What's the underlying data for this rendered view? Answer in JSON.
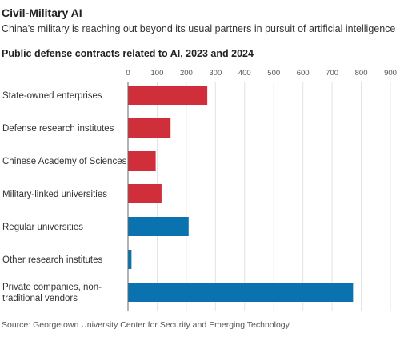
{
  "header": {
    "title": "Civil-Military AI",
    "subtitle": "China’s military is reaching out beyond its usual partners in pursuit of artificial intelligence"
  },
  "colors": {
    "red": "#d12e3c",
    "blue": "#0a72ae",
    "grid": "#e3e3e3"
  },
  "chart_data": {
    "type": "bar",
    "orientation": "horizontal",
    "title": "Public defense contracts related to AI, 2023 and 2024",
    "categories": [
      [
        "State-owned enterprises"
      ],
      [
        "Defense research institutes"
      ],
      [
        "Chinese Academy of Sciences"
      ],
      [
        "Military-linked universities"
      ],
      [
        "Regular universities"
      ],
      [
        "Other research institutes"
      ],
      [
        "Private companies, non-",
        "traditional vendors"
      ]
    ],
    "values": [
      272,
      146,
      95,
      115,
      208,
      12,
      772
    ],
    "bar_colors": [
      "red",
      "red",
      "red",
      "red",
      "blue",
      "blue",
      "blue"
    ],
    "xlim": [
      0,
      900
    ],
    "xticks": [
      0,
      100,
      200,
      300,
      400,
      500,
      600,
      700,
      800,
      900
    ],
    "grid": true
  },
  "footer": {
    "source": "Source: Georgetown University Center for Security and Emerging Technology"
  }
}
